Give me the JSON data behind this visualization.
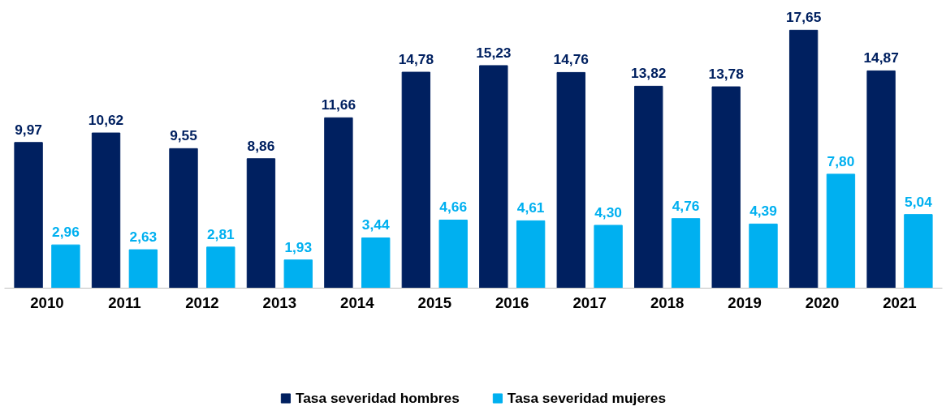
{
  "chart_data": {
    "type": "bar",
    "categories": [
      "2010",
      "2011",
      "2012",
      "2013",
      "2014",
      "2015",
      "2016",
      "2017",
      "2018",
      "2019",
      "2020",
      "2021"
    ],
    "series": [
      {
        "name": "Tasa severidad hombres",
        "color": "#002060",
        "values": [
          9.97,
          10.62,
          9.55,
          8.86,
          11.66,
          14.78,
          15.23,
          14.76,
          13.82,
          13.78,
          17.65,
          14.87
        ],
        "value_labels": [
          "9,97",
          "10,62",
          "9,55",
          "8,86",
          "11,66",
          "14,78",
          "15,23",
          "14,76",
          "13,82",
          "13,78",
          "17,65",
          "14,87"
        ]
      },
      {
        "name": "Tasa severidad mujeres",
        "color": "#00b0f0",
        "values": [
          2.96,
          2.63,
          2.81,
          1.93,
          3.44,
          4.66,
          4.61,
          4.3,
          4.76,
          4.39,
          7.8,
          5.04
        ],
        "value_labels": [
          "2,96",
          "2,63",
          "2,81",
          "1,93",
          "3,44",
          "4,66",
          "4,61",
          "4,30",
          "4,76",
          "4,39",
          "7,80",
          "5,04"
        ]
      }
    ],
    "tick_labels": "x",
    "grid": false,
    "legend": "bottom"
  }
}
